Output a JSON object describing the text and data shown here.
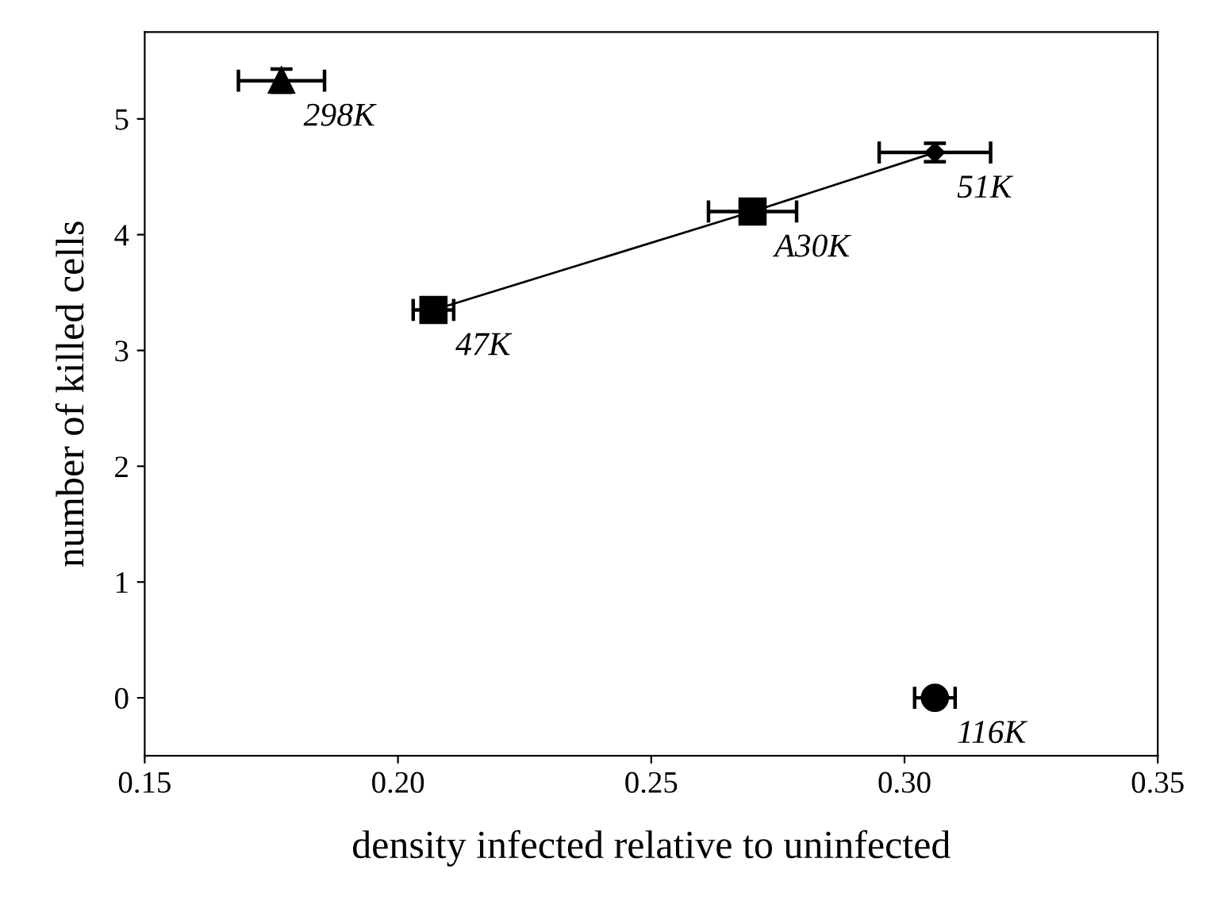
{
  "chart_data": {
    "type": "scatter",
    "xlabel": "density infected relative to uninfected",
    "ylabel": "number of killed cells",
    "xlim": [
      0.15,
      0.35
    ],
    "xticks": [
      {
        "value": 0.15,
        "label": "0.15"
      },
      {
        "value": 0.2,
        "label": "0.20"
      },
      {
        "value": 0.25,
        "label": "0.25"
      },
      {
        "value": 0.3,
        "label": "0.30"
      },
      {
        "value": 0.35,
        "label": "0.35"
      }
    ],
    "ylim": [
      -0.5,
      5.75
    ],
    "yticks": [
      0,
      1,
      2,
      3,
      4,
      5
    ],
    "grid": false,
    "legend": false,
    "series": [
      {
        "type": "line",
        "color": "#000000",
        "x": [
          0.207,
          0.27,
          0.306
        ],
        "values": [
          3.35,
          4.2,
          4.71
        ],
        "marker": "none",
        "line_style": "solid"
      },
      {
        "name": "298K",
        "color": "#000000",
        "marker": "triangle",
        "x": [
          0.177
        ],
        "values": [
          5.33
        ],
        "xerrors": [
          0.0085
        ],
        "errors": [
          0.1
        ]
      },
      {
        "name": "47K",
        "color": "#000000",
        "marker": "square",
        "x": [
          0.207
        ],
        "values": [
          3.35
        ],
        "xerrors": [
          0.004
        ],
        "errors": [
          0.03
        ]
      },
      {
        "name": "A30K",
        "color": "#000000",
        "marker": "square",
        "x": [
          0.27
        ],
        "values": [
          4.2
        ],
        "xerrors": [
          0.0087
        ],
        "errors": [
          0.08
        ]
      },
      {
        "name": "51K",
        "color": "#000000",
        "marker": "diamond",
        "x": [
          0.306
        ],
        "values": [
          4.71
        ],
        "xerrors": [
          0.011
        ],
        "errors": [
          0.08
        ]
      },
      {
        "name": "116K",
        "color": "#000000",
        "marker": "circle",
        "x": [
          0.306
        ],
        "values": [
          0
        ],
        "xerrors": [
          0.004
        ],
        "errors": [
          0.03
        ]
      }
    ]
  }
}
